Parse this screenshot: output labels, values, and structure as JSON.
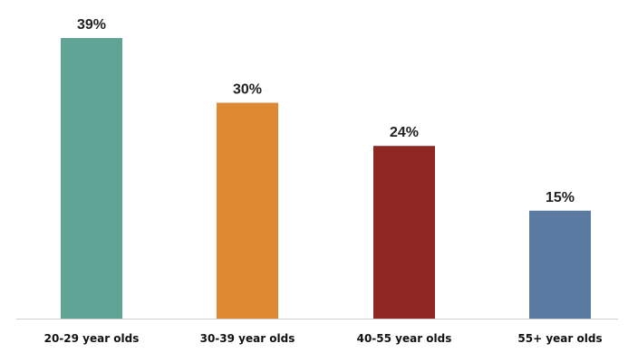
{
  "chart_data": {
    "type": "bar",
    "title": "",
    "xlabel": "",
    "ylabel": "",
    "categories": [
      "20-29 year olds",
      "30-39 year olds",
      "40-55 year olds",
      "55+ year olds"
    ],
    "values": [
      39,
      30,
      24,
      15
    ],
    "value_labels": [
      "39%",
      "30%",
      "24%",
      "15%"
    ],
    "bar_colors": [
      "#5fa495",
      "#de8a33",
      "#8f2723",
      "#5a7aa1"
    ],
    "ylim": [
      0,
      39
    ],
    "grid": false,
    "legend": "none"
  }
}
